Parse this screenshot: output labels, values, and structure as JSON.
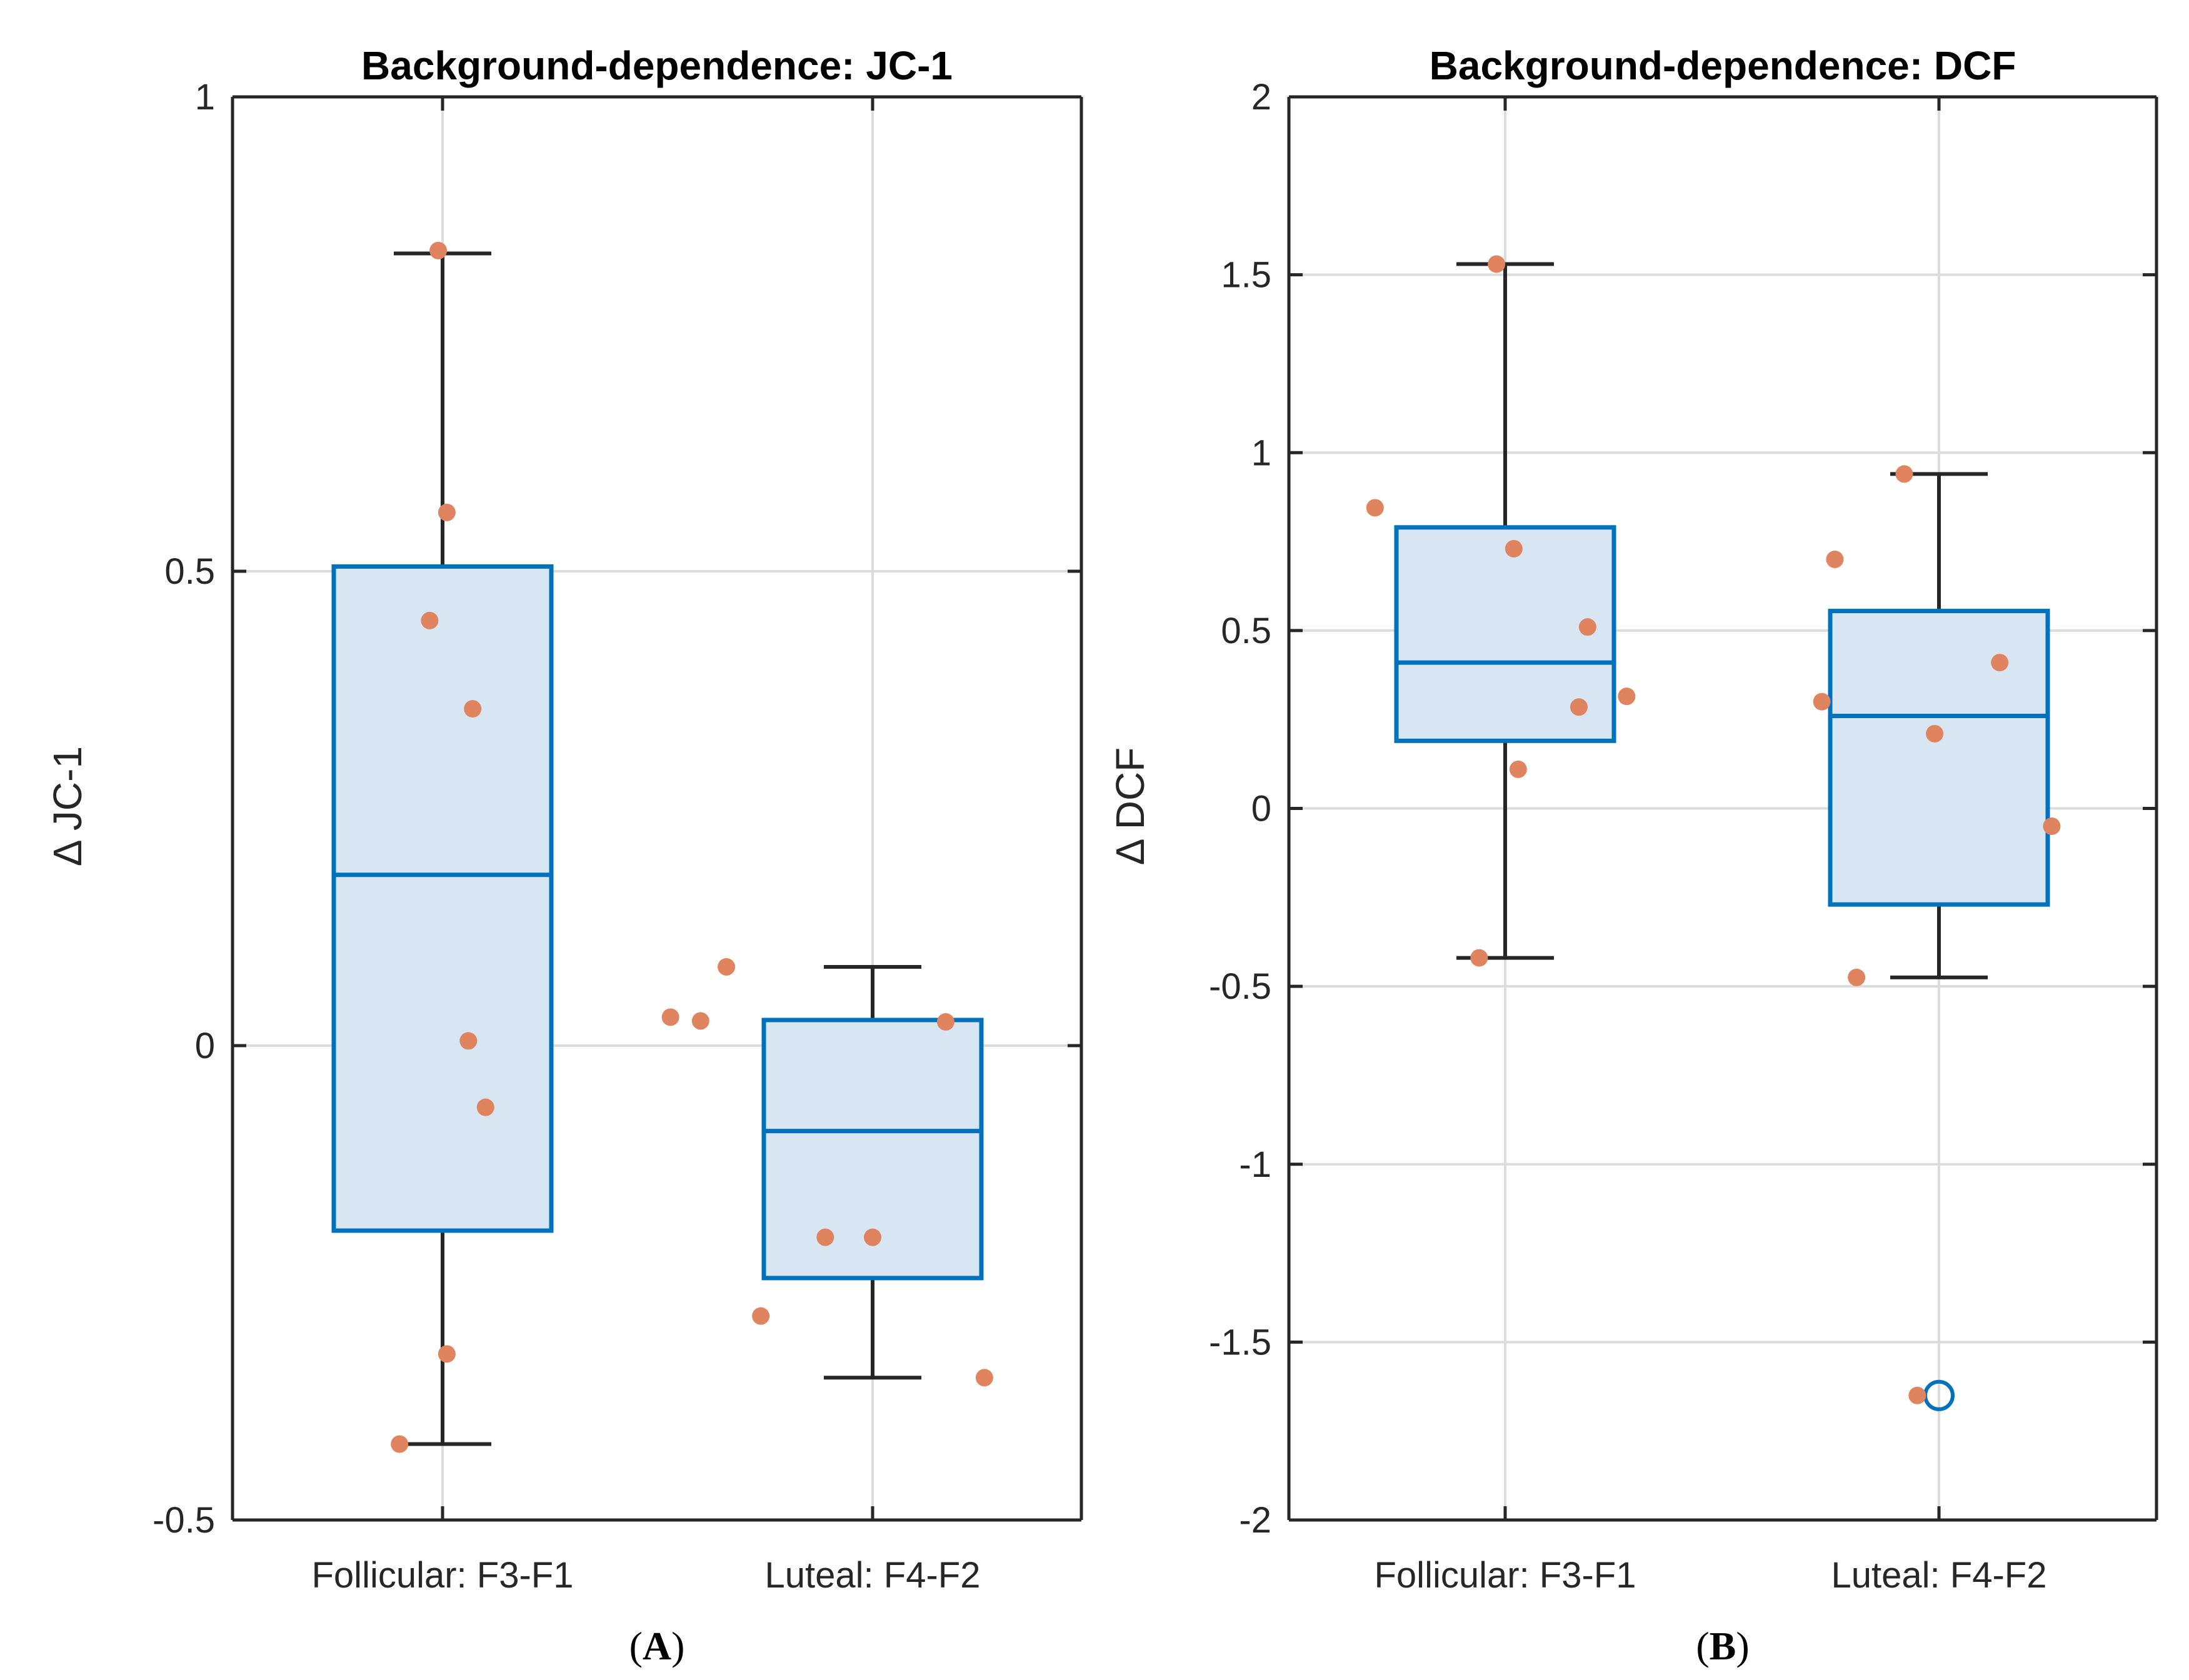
{
  "chart_data": [
    {
      "type": "boxplot",
      "panel_label_prefix": "(",
      "panel_letter": "A",
      "panel_label_suffix": ")",
      "title": "Background-dependence: JC-1",
      "ylabel": "Δ JC-1",
      "ylim": [
        -0.5,
        1
      ],
      "yticks": [
        -0.5,
        0,
        0.5,
        1
      ],
      "ytick_labels": [
        "-0.5",
        "0",
        "0.5",
        "1"
      ],
      "grid": true,
      "categories": [
        "Follicular: F3-F1",
        "Luteal: F4-F2"
      ],
      "boxes": [
        {
          "category": "Follicular: F3-F1",
          "q1": -0.195,
          "median": 0.18,
          "q3": 0.505,
          "whisker_low": -0.42,
          "whisker_high": 0.835,
          "outliers": []
        },
        {
          "category": "Luteal: F4-F2",
          "q1": -0.245,
          "median": -0.09,
          "q3": 0.027,
          "whisker_low": -0.35,
          "whisker_high": 0.083,
          "outliers": []
        }
      ],
      "points": [
        {
          "x": 0.9,
          "y": -0.42
        },
        {
          "x": 1.01,
          "y": -0.325
        },
        {
          "x": 1.1,
          "y": -0.065
        },
        {
          "x": 1.06,
          "y": 0.005
        },
        {
          "x": 1.07,
          "y": 0.355
        },
        {
          "x": 0.97,
          "y": 0.448
        },
        {
          "x": 1.01,
          "y": 0.562
        },
        {
          "x": 0.99,
          "y": 0.838
        },
        {
          "x": 1.53,
          "y": 0.03
        },
        {
          "x": 1.6,
          "y": 0.026
        },
        {
          "x": 1.66,
          "y": 0.083
        },
        {
          "x": 1.74,
          "y": -0.285
        },
        {
          "x": 1.89,
          "y": -0.202
        },
        {
          "x": 2.0,
          "y": -0.202
        },
        {
          "x": 2.17,
          "y": 0.025
        },
        {
          "x": 2.26,
          "y": -0.35
        }
      ],
      "colors": {
        "box_edge": "#0072BD",
        "box_fill": "#d7e6f2",
        "whisker": "#262626",
        "point": "#e0835f"
      }
    },
    {
      "type": "boxplot",
      "panel_label_prefix": "(",
      "panel_letter": "B",
      "panel_label_suffix": ")",
      "title": "Background-dependence: DCF",
      "ylabel": "Δ DCF",
      "ylim": [
        -2,
        2
      ],
      "yticks": [
        -2,
        -1.5,
        -1,
        -0.5,
        0,
        0.5,
        1,
        1.5,
        2
      ],
      "ytick_labels": [
        "-2",
        "-1.5",
        "-1",
        "-0.5",
        "0",
        "0.5",
        "1",
        "1.5",
        "2"
      ],
      "grid": true,
      "categories": [
        "Follicular: F3-F1",
        "Luteal: F4-F2"
      ],
      "boxes": [
        {
          "category": "Follicular: F3-F1",
          "q1": 0.19,
          "median": 0.41,
          "q3": 0.79,
          "whisker_low": -0.42,
          "whisker_high": 1.53,
          "outliers": []
        },
        {
          "category": "Luteal: F4-F2",
          "q1": -0.27,
          "median": 0.26,
          "q3": 0.555,
          "whisker_low": -0.475,
          "whisker_high": 0.94,
          "outliers": [
            -1.65
          ]
        }
      ],
      "points": [
        {
          "x": 0.7,
          "y": 0.845
        },
        {
          "x": 0.94,
          "y": -0.42
        },
        {
          "x": 1.02,
          "y": 0.73
        },
        {
          "x": 1.03,
          "y": 0.11
        },
        {
          "x": 1.17,
          "y": 0.285
        },
        {
          "x": 1.19,
          "y": 0.51
        },
        {
          "x": 1.28,
          "y": 0.315
        },
        {
          "x": 0.98,
          "y": 1.53
        },
        {
          "x": 1.73,
          "y": 0.3
        },
        {
          "x": 1.76,
          "y": 0.7
        },
        {
          "x": 1.81,
          "y": -0.475
        },
        {
          "x": 1.92,
          "y": 0.94
        },
        {
          "x": 1.99,
          "y": 0.21
        },
        {
          "x": 2.14,
          "y": 0.41
        },
        {
          "x": 2.26,
          "y": -0.05
        },
        {
          "x": 1.95,
          "y": -1.65
        }
      ],
      "colors": {
        "box_edge": "#0072BD",
        "box_fill": "#d7e6f2",
        "whisker": "#262626",
        "point": "#e0835f"
      }
    }
  ]
}
